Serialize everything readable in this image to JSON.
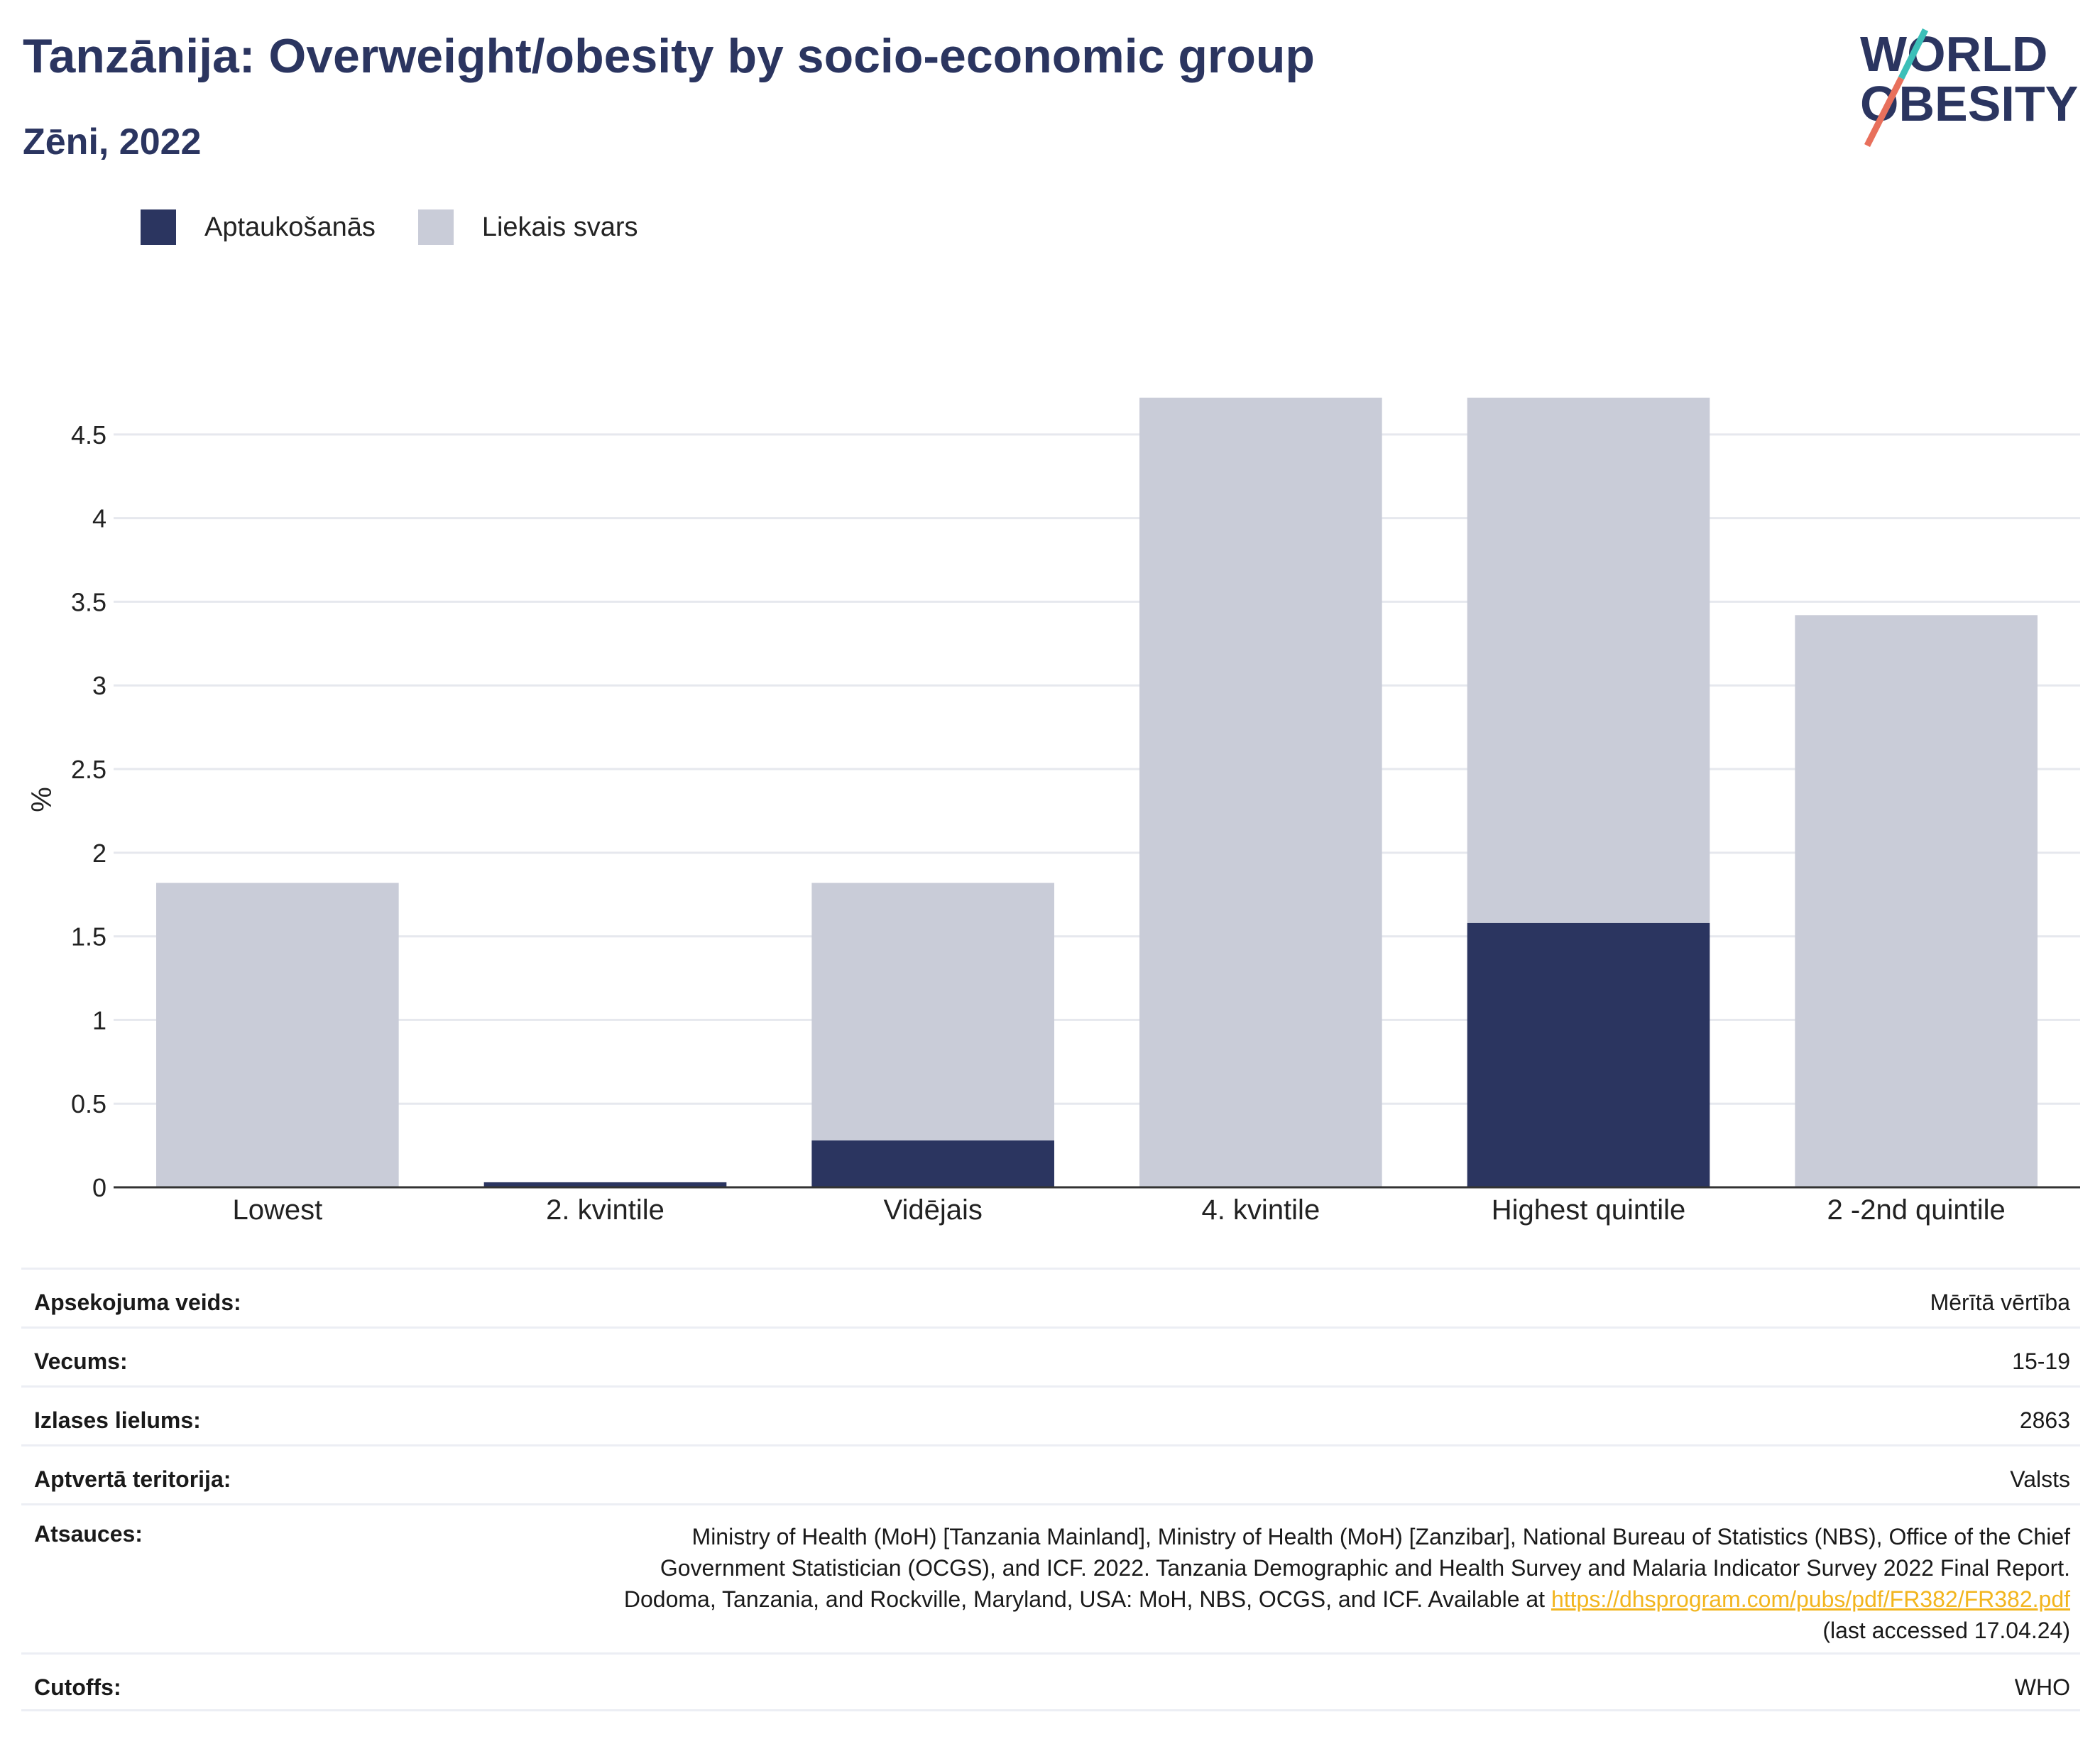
{
  "header": {
    "title": "Tanzānija: Overweight/obesity by socio-economic group",
    "subtitle": "Zēni, 2022"
  },
  "logo": {
    "line1": "WORLD",
    "line2": "OBESITY",
    "accent_colors": [
      "#3cbfb8",
      "#e8705c"
    ]
  },
  "legend": [
    {
      "label": "Aptaukošanās",
      "color": "#2b3560"
    },
    {
      "label": "Liekais svars",
      "color": "#c9ccd8"
    }
  ],
  "chart_data": {
    "type": "bar",
    "stacked": true,
    "categories": [
      "Lowest",
      "2. kvintile",
      "Vidējais",
      "4. kvintile",
      "Highest quintile",
      "2 -2nd quintile"
    ],
    "series": [
      {
        "name": "Aptaukošanās",
        "values": [
          0,
          0.03,
          0.28,
          0,
          1.58,
          0
        ],
        "color": "#2b3560"
      },
      {
        "name": "Liekais svars",
        "values": [
          1.82,
          0,
          1.54,
          4.72,
          3.14,
          3.42
        ],
        "color": "#c9ccd8"
      }
    ],
    "ylabel": "%",
    "ylim": [
      0,
      4.72
    ],
    "yticks": [
      0,
      0.5,
      1,
      1.5,
      2,
      2.5,
      3,
      3.5,
      4,
      4.5
    ],
    "ytick_labels": [
      "0",
      "0.5",
      "1",
      "1.5",
      "2",
      "2.5",
      "3",
      "3.5",
      "4",
      "4.5"
    ],
    "grid": true
  },
  "meta": {
    "survey_type": {
      "label": "Apsekojuma veids:",
      "value": "Mērītā vērtība"
    },
    "age": {
      "label": "Vecums:",
      "value": "15-19"
    },
    "sample_size": {
      "label": "Izlases lielums:",
      "value": "2863"
    },
    "area": {
      "label": "Aptvertā teritorija:",
      "value": "Valsts"
    },
    "references": {
      "label": "Atsauces:",
      "text": "Ministry of Health (MoH) [Tanzania Mainland], Ministry of Health (MoH) [Zanzibar], National Bureau of Statistics (NBS), Office of the Chief Government Statistician (OCGS), and ICF. 2022. Tanzania Demographic and Health Survey and Malaria Indicator Survey 2022 Final Report. Dodoma, Tanzania, and Rockville, Maryland, USA: MoH, NBS, OCGS, and ICF. Available at",
      "link": "https://dhsprogram.com/pubs/pdf/FR382/FR382.pdf",
      "suffix": "(last accessed 17.04.24)"
    },
    "cutoffs": {
      "label": "Cutoffs:",
      "value": "WHO"
    }
  }
}
